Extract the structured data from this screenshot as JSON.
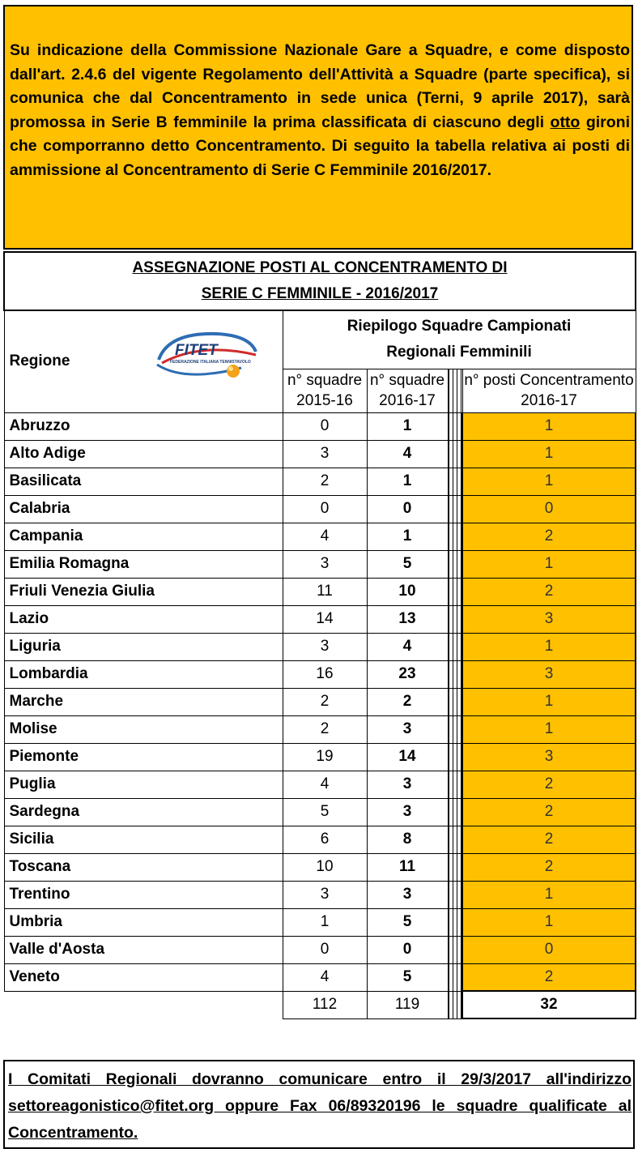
{
  "notice": {
    "part1": "Su indicazione della Commissione Nazionale Gare a Squadre, e come disposto dall'art. 2.4.6 del vigente Regolamento dell'Attività a Squadre (parte specifica), si comunica che dal Concentramento in sede unica (Terni, 9 aprile 2017), sarà promossa in Serie B femminile la prima classificata di ciascuno degli ",
    "underlined": "otto",
    "part2": " gironi che comporranno  detto Concentramento. Di seguito la tabella relativa ai posti di ammissione al Concentramento di Serie C Femminile 2016/2017."
  },
  "table": {
    "title_line1": "ASSEGNAZIONE  POSTI AL CONCENTRAMENTO DI",
    "title_line2": "SERIE C FEMMINILE - 2016/2017",
    "region_header": "Regione",
    "logo_text": "FITET",
    "logo_subtext": "FEDERAZIONE ITALIANA TENNISTAVOLO",
    "riepilogo_line1": "Riepilogo Squadre Campionati",
    "riepilogo_line2": "Regionali Femminili",
    "col1_line1": "n° squadre",
    "col1_line2": "2015-16",
    "col2_line1": "n° squadre",
    "col2_line2": "2016-17",
    "col3_line1": "n° posti Concentramento",
    "col3_line2": "2016-17",
    "rows": [
      {
        "region": "Abruzzo",
        "s1516": "0",
        "s1617": "1",
        "posti": "1"
      },
      {
        "region": "Alto Adige",
        "s1516": "3",
        "s1617": "4",
        "posti": "1"
      },
      {
        "region": "Basilicata",
        "s1516": "2",
        "s1617": "1",
        "posti": "1"
      },
      {
        "region": "Calabria",
        "s1516": "0",
        "s1617": "0",
        "posti": "0"
      },
      {
        "region": "Campania",
        "s1516": "4",
        "s1617": "1",
        "posti": "2"
      },
      {
        "region": "Emilia Romagna",
        "s1516": "3",
        "s1617": "5",
        "posti": "1"
      },
      {
        "region": "Friuli Venezia Giulia",
        "s1516": "11",
        "s1617": "10",
        "posti": "2"
      },
      {
        "region": "Lazio",
        "s1516": "14",
        "s1617": "13",
        "posti": "3"
      },
      {
        "region": "Liguria",
        "s1516": "3",
        "s1617": "4",
        "posti": "1"
      },
      {
        "region": "Lombardia",
        "s1516": "16",
        "s1617": "23",
        "posti": "3"
      },
      {
        "region": "Marche",
        "s1516": "2",
        "s1617": "2",
        "posti": "1"
      },
      {
        "region": "Molise",
        "s1516": "2",
        "s1617": "3",
        "posti": "1"
      },
      {
        "region": "Piemonte",
        "s1516": "19",
        "s1617": "14",
        "posti": "3"
      },
      {
        "region": "Puglia",
        "s1516": "4",
        "s1617": "3",
        "posti": "2"
      },
      {
        "region": "Sardegna",
        "s1516": "5",
        "s1617": "3",
        "posti": "2"
      },
      {
        "region": "Sicilia",
        "s1516": "6",
        "s1617": "8",
        "posti": "2"
      },
      {
        "region": "Toscana",
        "s1516": "10",
        "s1617": "11",
        "posti": "2"
      },
      {
        "region": "Trentino",
        "s1516": "3",
        "s1617": "3",
        "posti": "1"
      },
      {
        "region": "Umbria",
        "s1516": "1",
        "s1617": "5",
        "posti": "1"
      },
      {
        "region": "Valle d'Aosta",
        "s1516": "0",
        "s1617": "0",
        "posti": "0"
      },
      {
        "region": "Veneto",
        "s1516": "4",
        "s1617": "5",
        "posti": "2"
      }
    ],
    "totals": {
      "s1516": "112",
      "s1617": "119",
      "posti": "32"
    }
  },
  "footer": {
    "text": "I Comitati Regionali dovranno comunicare entro il 29/3/2017 all'indirizzo settoreagonistico@fitet.org oppure Fax 06/89320196 le squadre qualificate al Concentramento."
  },
  "colors": {
    "accent": "#FFC000"
  }
}
